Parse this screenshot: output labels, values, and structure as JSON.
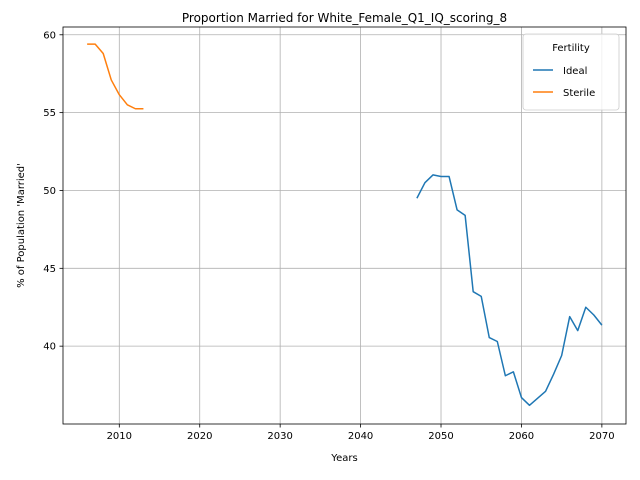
{
  "chart_data": {
    "type": "line",
    "title": "Proportion Married for White_Female_Q1_IQ_scoring_8",
    "xlabel": "Years",
    "ylabel": "% of Population 'Married'",
    "xlim": [
      2003,
      2073
    ],
    "ylim": [
      35,
      60.5
    ],
    "xticks": [
      2010,
      2020,
      2030,
      2040,
      2050,
      2060,
      2070
    ],
    "yticks": [
      40,
      45,
      50,
      55,
      60
    ],
    "grid": true,
    "legend": {
      "title": "Fertility",
      "placement": "top-right"
    },
    "series": [
      {
        "name": "Ideal",
        "color": "#1f77b4",
        "x": [
          2047,
          2048,
          2049,
          2050,
          2051,
          2052,
          2053,
          2054,
          2055,
          2056,
          2057,
          2058,
          2059,
          2060,
          2061,
          2062,
          2063,
          2064,
          2065,
          2066,
          2067,
          2068,
          2069,
          2070
        ],
        "y": [
          49.5,
          50.5,
          51.0,
          50.9,
          50.9,
          48.75,
          48.4,
          43.5,
          43.2,
          40.55,
          40.3,
          38.1,
          38.35,
          36.7,
          36.2,
          36.65,
          37.1,
          38.2,
          39.4,
          41.9,
          41.0,
          42.5,
          42.0,
          41.35
        ]
      },
      {
        "name": "Sterile",
        "color": "#ff7f0e",
        "x": [
          2006,
          2007,
          2008,
          2009,
          2010,
          2011,
          2012,
          2013
        ],
        "y": [
          59.4,
          59.4,
          58.8,
          57.1,
          56.15,
          55.5,
          55.25,
          55.25
        ]
      }
    ]
  }
}
